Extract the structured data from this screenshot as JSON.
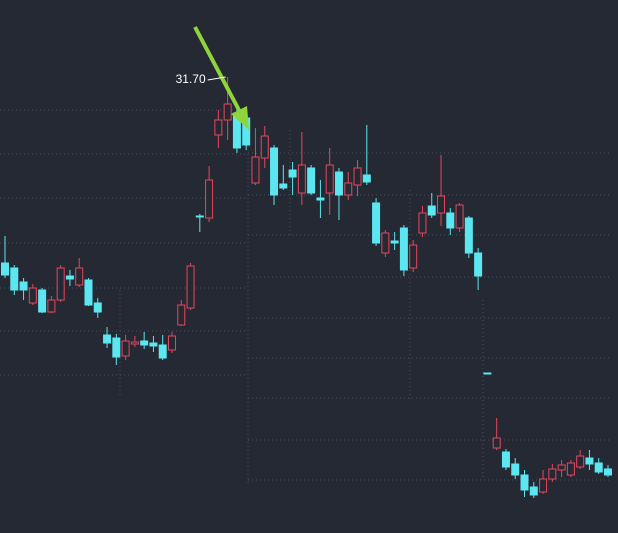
{
  "chart_data": {
    "type": "candlestick",
    "annotation": "31.70",
    "ylim": [
      22.58,
      33.24
    ],
    "up_color": "#e8455e",
    "down_color": "#5ce6f0",
    "open": [
      27.98,
      27.88,
      27.6,
      27.18,
      27.44,
      27.0,
      27.24,
      27.72,
      27.54,
      27.64,
      27.18,
      26.54,
      26.48,
      26.12,
      26.36,
      26.42,
      26.38,
      26.34,
      26.24,
      26.74,
      27.08,
      28.92,
      28.88,
      30.54,
      30.84,
      30.98,
      30.88,
      29.58,
      30.08,
      30.28,
      29.56,
      29.84,
      29.38,
      29.88,
      29.28,
      29.38,
      29.8,
      29.34,
      29.54,
      29.74,
      29.18,
      28.18,
      28.42,
      28.68,
      27.88,
      28.58,
      29.12,
      28.98,
      28.98,
      28.68,
      28.88,
      28.18,
      25.78,
      24.28,
      24.2,
      23.96,
      23.74,
      23.5,
      23.4,
      23.66,
      23.84,
      23.74,
      23.9,
      24.08,
      23.98,
      23.86
    ],
    "high": [
      28.52,
      27.94,
      27.68,
      27.56,
      27.48,
      27.32,
      27.94,
      27.84,
      28.08,
      27.68,
      27.28,
      26.7,
      26.56,
      26.54,
      26.52,
      26.6,
      26.52,
      26.54,
      26.6,
      27.24,
      27.98,
      28.96,
      29.92,
      31.04,
      31.7,
      31.08,
      30.94,
      30.68,
      30.72,
      30.34,
      29.94,
      30.0,
      30.6,
      29.94,
      29.64,
      30.28,
      29.88,
      29.8,
      30.04,
      30.74,
      29.28,
      28.64,
      28.6,
      28.74,
      28.44,
      29.12,
      29.38,
      30.14,
      29.08,
      29.18,
      28.92,
      28.28,
      25.78,
      24.88,
      24.26,
      24.08,
      23.84,
      23.6,
      23.84,
      23.96,
      24.04,
      24.04,
      24.24,
      24.24,
      24.08,
      23.94
    ],
    "low": [
      27.68,
      27.34,
      27.24,
      27.14,
      26.98,
      26.98,
      27.2,
      27.52,
      27.5,
      27.12,
      26.88,
      26.28,
      25.94,
      26.04,
      26.3,
      26.26,
      26.2,
      26.04,
      26.18,
      26.72,
      27.04,
      28.6,
      28.8,
      30.28,
      30.44,
      30.18,
      30.24,
      29.54,
      29.88,
      29.14,
      29.44,
      29.34,
      29.14,
      29.34,
      28.88,
      28.94,
      28.84,
      29.24,
      29.32,
      29.54,
      28.32,
      28.1,
      28.24,
      27.72,
      27.8,
      28.5,
      28.88,
      28.72,
      28.54,
      28.6,
      28.08,
      27.44,
      25.76,
      24.24,
      23.84,
      23.66,
      23.3,
      23.28,
      23.36,
      23.6,
      23.7,
      23.7,
      23.86,
      23.84,
      23.76,
      23.7
    ],
    "close": [
      27.74,
      27.44,
      27.44,
      27.48,
      27.0,
      27.24,
      27.88,
      27.66,
      27.88,
      27.14,
      27.0,
      26.38,
      26.1,
      26.42,
      26.4,
      26.34,
      26.32,
      26.08,
      26.52,
      27.14,
      27.92,
      28.9,
      29.64,
      30.84,
      31.16,
      30.28,
      30.34,
      30.1,
      30.52,
      29.34,
      29.48,
      29.7,
      29.94,
      29.38,
      29.24,
      29.94,
      29.34,
      29.58,
      29.88,
      29.6,
      28.38,
      28.58,
      28.38,
      27.84,
      28.34,
      28.98,
      28.94,
      29.32,
      28.68,
      29.14,
      28.18,
      27.72,
      25.76,
      24.48,
      23.9,
      23.74,
      23.44,
      23.34,
      23.66,
      23.86,
      23.94,
      23.98,
      24.12,
      23.96,
      23.8,
      23.74
    ]
  }
}
